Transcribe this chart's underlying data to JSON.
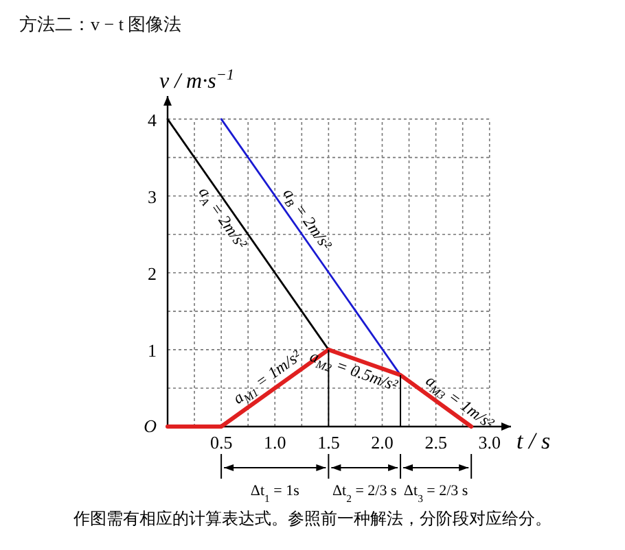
{
  "chart_data": {
    "type": "line",
    "title": "方法二：v − t 图像法",
    "xlabel": "t / s",
    "ylabel": "v / m·s$^{−1}$",
    "xlim": [
      0,
      3.2
    ],
    "ylim": [
      0,
      4.3
    ],
    "xticks": [
      {
        "value": 0.25,
        "label": null
      },
      0.5,
      {
        "value": 0.75,
        "label": null
      },
      {
        "value": 1,
        "label": "1.0"
      },
      {
        "value": 1.25,
        "label": null
      },
      1.5,
      {
        "value": 1.75,
        "label": null
      },
      {
        "value": 2,
        "label": "2.0"
      },
      {
        "value": 2.25,
        "label": null
      },
      2.5,
      {
        "value": 2.75,
        "label": null
      },
      {
        "value": 3,
        "label": "3.0"
      }
    ],
    "yticks": [
      {
        "value": 0,
        "label": "O"
      },
      {
        "value": 0.5,
        "label": null
      },
      1,
      {
        "value": 1.5,
        "label": null
      },
      2,
      {
        "value": 2.5,
        "label": null
      },
      3,
      {
        "value": 3.5,
        "label": null
      },
      4
    ],
    "grid": true,
    "marker": "none",
    "line_style": "solid",
    "series": [
      {
        "color": "#000000",
        "x": [
          0,
          1.5
        ],
        "values": [
          4,
          1
        ]
      },
      {
        "color": "#1a1ad2",
        "x": [
          0.5,
          2.17
        ],
        "values": [
          4,
          0.67
        ]
      },
      {
        "color": "#e02020",
        "x": [
          0,
          0.5,
          1.5,
          2.17,
          2.83
        ],
        "values": [
          0,
          0,
          1,
          0.67,
          0
        ]
      }
    ],
    "annotations": [
      {
        "text": "a$_{A}$ = 2m/s²",
        "x": 0.6,
        "y": 2.8
      },
      {
        "text": "a$_{B}$ = 2m/s²",
        "x": 1.2,
        "y": 2.6
      },
      {
        "text": "a$_{M1}$ = 1m/s²",
        "x": 1.0,
        "y": 0.5
      },
      {
        "text": "a$_{M2}$ = 0.5m/s²",
        "x": 1.77,
        "y": 0.865
      },
      {
        "text": "a$_{M3}$ = 1m/s²",
        "x": 2.65,
        "y": 0.18
      },
      "Δt$_{1}$ = 1s",
      "Δt$_{2}$ = 2/3 s",
      "Δt$_{3}$ = 2/3 s",
      "作图需有相应的计算表达式。参照前一种解法，分阶段对应给分。"
    ]
  }
}
